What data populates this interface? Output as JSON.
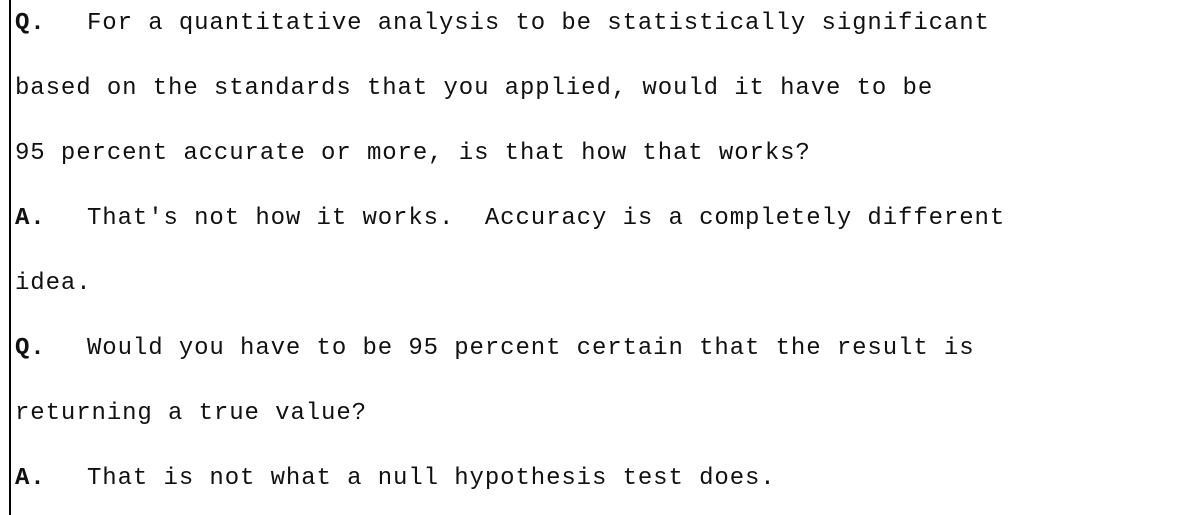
{
  "transcript": {
    "lines": [
      {
        "marker": "Q.",
        "text": "For a quantitative analysis to be statistically significant"
      },
      {
        "marker": "",
        "text": "based on the standards that you applied, would it have to be"
      },
      {
        "marker": "",
        "text": "95 percent accurate or more, is that how that works?"
      },
      {
        "marker": "A.",
        "text": "That's not how it works.  Accuracy is a completely different"
      },
      {
        "marker": "",
        "text": "idea."
      },
      {
        "marker": "Q.",
        "text": "Would you have to be 95 percent certain that the result is"
      },
      {
        "marker": "",
        "text": "returning a true value?"
      },
      {
        "marker": "A.",
        "text": "That is not what a null hypothesis test does."
      }
    ]
  }
}
